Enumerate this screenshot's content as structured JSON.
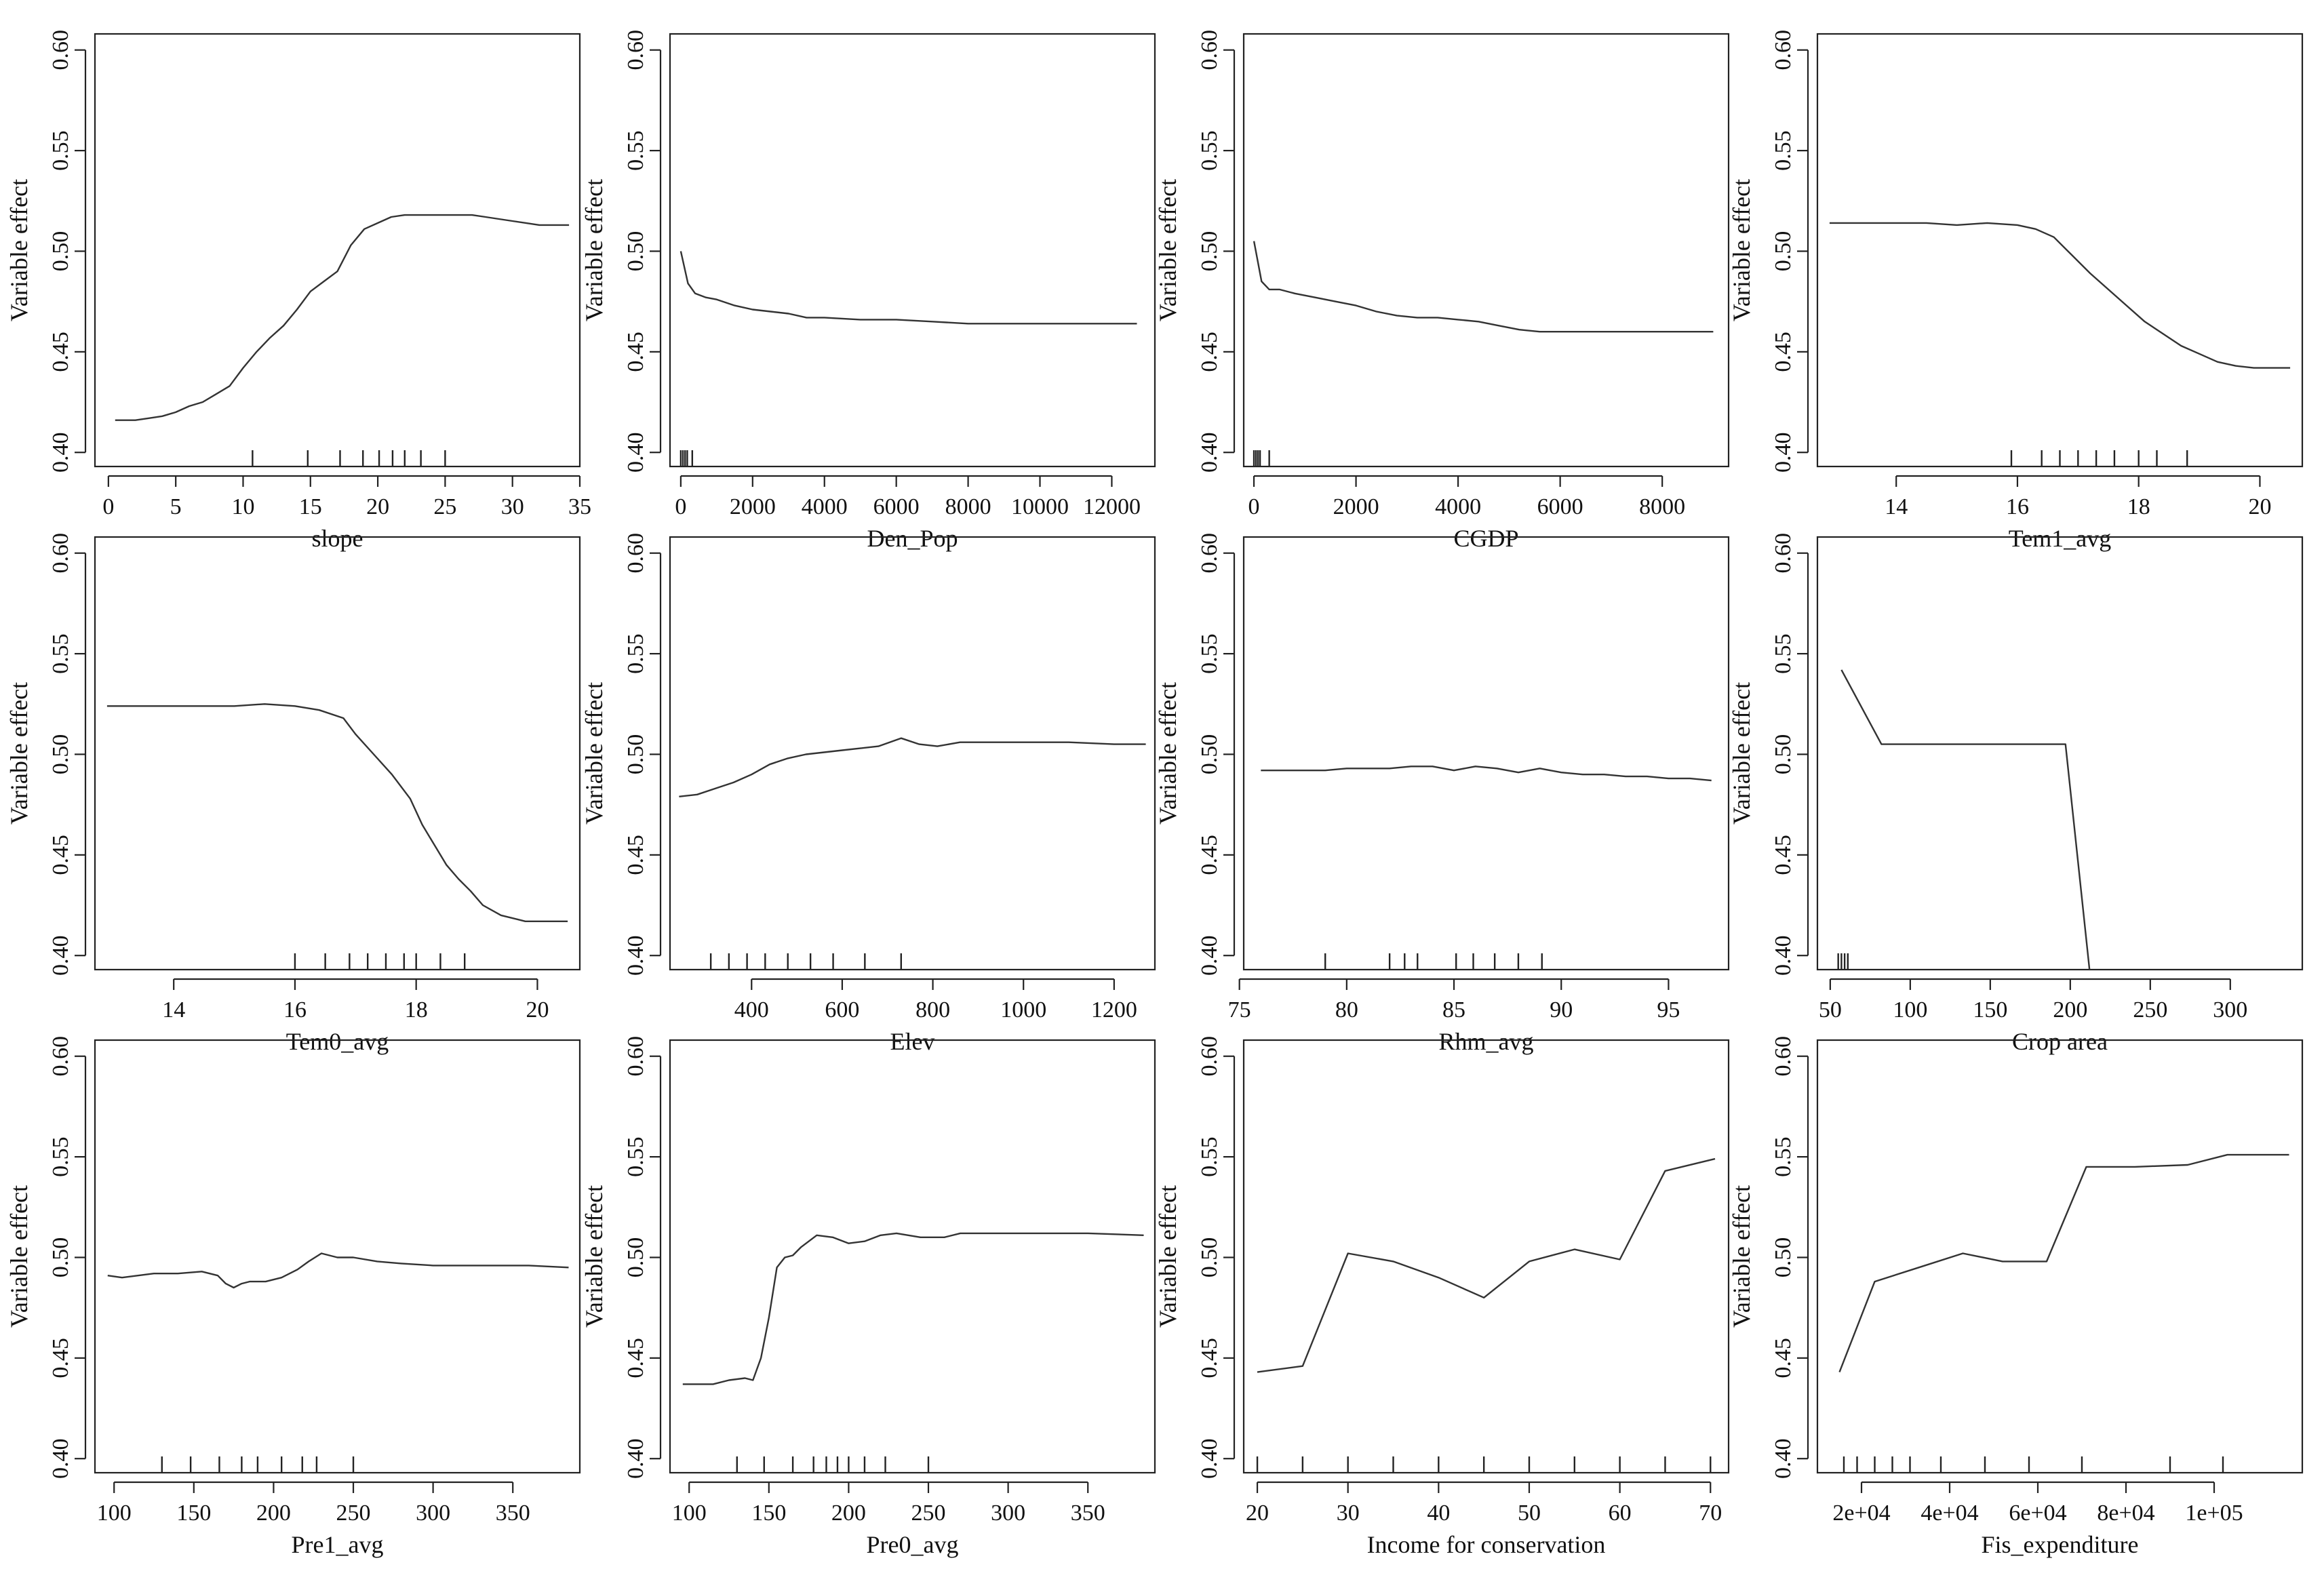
{
  "chart_data": [
    {
      "type": "line",
      "xlabel": "slope",
      "ylabel": "Variable effect",
      "xlim": [
        -1,
        35
      ],
      "ylim": [
        0.393,
        0.608
      ],
      "xticks": [
        0,
        5,
        10,
        15,
        20,
        25,
        30,
        35
      ],
      "xtick_labels": [
        "0",
        "5",
        "10",
        "15",
        "20",
        "25",
        "30",
        "35"
      ],
      "yticks": [
        0.4,
        0.45,
        0.5,
        0.55,
        0.6
      ],
      "ytick_labels": [
        "0.40",
        "0.45",
        "0.50",
        "0.55",
        "0.60"
      ],
      "rug": [
        10.7,
        14.8,
        17.2,
        18.9,
        20.1,
        21.1,
        22.0,
        23.2,
        25.0
      ],
      "x": [
        0.5,
        2,
        3,
        4,
        5,
        6,
        7,
        8,
        9,
        10,
        11,
        12,
        13,
        14,
        15,
        16,
        17,
        18,
        19,
        20,
        21,
        22,
        23,
        24,
        25,
        26,
        27,
        28,
        29,
        30,
        31,
        32,
        33,
        34.2
      ],
      "y": [
        0.416,
        0.416,
        0.417,
        0.418,
        0.42,
        0.423,
        0.425,
        0.429,
        0.433,
        0.442,
        0.45,
        0.457,
        0.463,
        0.471,
        0.48,
        0.485,
        0.49,
        0.503,
        0.511,
        0.514,
        0.517,
        0.518,
        0.518,
        0.518,
        0.518,
        0.518,
        0.518,
        0.517,
        0.516,
        0.515,
        0.514,
        0.513,
        0.513,
        0.513
      ]
    },
    {
      "type": "line",
      "xlabel": "Den_Pop",
      "ylabel": "Variable effect",
      "xlim": [
        -300,
        13200
      ],
      "ylim": [
        0.393,
        0.608
      ],
      "xticks": [
        0,
        2000,
        4000,
        6000,
        8000,
        10000,
        12000
      ],
      "xtick_labels": [
        "0",
        "2000",
        "4000",
        "6000",
        "8000",
        "10000",
        "12000"
      ],
      "yticks": [
        0.4,
        0.45,
        0.5,
        0.55,
        0.6
      ],
      "ytick_labels": [
        "0.40",
        "0.45",
        "0.50",
        "0.55",
        "0.60"
      ],
      "rug": [
        0,
        60,
        120,
        180,
        320
      ],
      "x": [
        0,
        200,
        400,
        700,
        1000,
        1500,
        2000,
        2500,
        3000,
        3500,
        4000,
        5000,
        6000,
        7000,
        8000,
        9000,
        10000,
        11000,
        12000,
        12700
      ],
      "y": [
        0.5,
        0.484,
        0.479,
        0.477,
        0.476,
        0.473,
        0.471,
        0.47,
        0.469,
        0.467,
        0.467,
        0.466,
        0.466,
        0.465,
        0.464,
        0.464,
        0.464,
        0.464,
        0.464,
        0.464
      ]
    },
    {
      "type": "line",
      "xlabel": "CGDP",
      "ylabel": "Variable effect",
      "xlim": [
        -200,
        9300
      ],
      "ylim": [
        0.393,
        0.608
      ],
      "xticks": [
        0,
        2000,
        4000,
        6000,
        8000
      ],
      "xtick_labels": [
        "0",
        "2000",
        "4000",
        "6000",
        "8000"
      ],
      "yticks": [
        0.4,
        0.45,
        0.5,
        0.55,
        0.6
      ],
      "ytick_labels": [
        "0.40",
        "0.45",
        "0.50",
        "0.55",
        "0.60"
      ],
      "rug": [
        0,
        40,
        80,
        120,
        300
      ],
      "x": [
        0,
        150,
        300,
        500,
        800,
        1200,
        1600,
        2000,
        2400,
        2800,
        3200,
        3600,
        4000,
        4400,
        4800,
        5200,
        5600,
        6000,
        6500,
        7000,
        7500,
        8000,
        8500,
        9000
      ],
      "y": [
        0.505,
        0.485,
        0.481,
        0.481,
        0.479,
        0.477,
        0.475,
        0.473,
        0.47,
        0.468,
        0.467,
        0.467,
        0.466,
        0.465,
        0.463,
        0.461,
        0.46,
        0.46,
        0.46,
        0.46,
        0.46,
        0.46,
        0.46,
        0.46
      ]
    },
    {
      "type": "line",
      "xlabel": "Tem1_avg",
      "ylabel": "Variable effect",
      "xlim": [
        12.7,
        20.7
      ],
      "ylim": [
        0.393,
        0.608
      ],
      "xticks": [
        14,
        16,
        18,
        20
      ],
      "xtick_labels": [
        "14",
        "16",
        "18",
        "20"
      ],
      "yticks": [
        0.4,
        0.45,
        0.5,
        0.55,
        0.6
      ],
      "ytick_labels": [
        "0.40",
        "0.45",
        "0.50",
        "0.55",
        "0.60"
      ],
      "rug": [
        15.9,
        16.4,
        16.7,
        17.0,
        17.3,
        17.6,
        18.0,
        18.3,
        18.8
      ],
      "x": [
        12.9,
        13.5,
        14.0,
        14.5,
        15.0,
        15.5,
        16.0,
        16.3,
        16.6,
        16.9,
        17.2,
        17.5,
        17.8,
        18.1,
        18.4,
        18.7,
        19.0,
        19.3,
        19.6,
        19.9,
        20.2,
        20.5
      ],
      "y": [
        0.514,
        0.514,
        0.514,
        0.514,
        0.513,
        0.514,
        0.513,
        0.511,
        0.507,
        0.498,
        0.489,
        0.481,
        0.473,
        0.465,
        0.459,
        0.453,
        0.449,
        0.445,
        0.443,
        0.442,
        0.442,
        0.442
      ]
    },
    {
      "type": "line",
      "xlabel": "Tem0_avg",
      "ylabel": "Variable effect",
      "xlim": [
        12.7,
        20.7
      ],
      "ylim": [
        0.393,
        0.608
      ],
      "xticks": [
        14,
        16,
        18,
        20
      ],
      "xtick_labels": [
        "14",
        "16",
        "18",
        "20"
      ],
      "yticks": [
        0.4,
        0.45,
        0.5,
        0.55,
        0.6
      ],
      "ytick_labels": [
        "0.40",
        "0.45",
        "0.50",
        "0.55",
        "0.60"
      ],
      "rug": [
        16.0,
        16.5,
        16.9,
        17.2,
        17.5,
        17.8,
        18.0,
        18.4,
        18.8
      ],
      "x": [
        12.9,
        13.5,
        14.0,
        14.5,
        15.0,
        15.5,
        16.0,
        16.4,
        16.8,
        17.0,
        17.3,
        17.6,
        17.9,
        18.1,
        18.3,
        18.5,
        18.7,
        18.9,
        19.1,
        19.4,
        19.8,
        20.2,
        20.5
      ],
      "y": [
        0.524,
        0.524,
        0.524,
        0.524,
        0.524,
        0.525,
        0.524,
        0.522,
        0.518,
        0.51,
        0.5,
        0.49,
        0.478,
        0.465,
        0.455,
        0.445,
        0.438,
        0.432,
        0.425,
        0.42,
        0.417,
        0.417,
        0.417
      ]
    },
    {
      "type": "line",
      "xlabel": "Elev",
      "ylabel": "Variable effect",
      "xlim": [
        220,
        1290
      ],
      "ylim": [
        0.393,
        0.608
      ],
      "xticks": [
        400,
        600,
        800,
        1000,
        1200
      ],
      "xtick_labels": [
        "400",
        "600",
        "800",
        "1000",
        "1200"
      ],
      "yticks": [
        0.4,
        0.45,
        0.5,
        0.55,
        0.6
      ],
      "ytick_labels": [
        "0.40",
        "0.45",
        "0.50",
        "0.55",
        "0.60"
      ],
      "rug": [
        310,
        350,
        390,
        430,
        480,
        530,
        580,
        650,
        730
      ],
      "x": [
        240,
        280,
        320,
        360,
        400,
        440,
        480,
        520,
        560,
        600,
        640,
        680,
        730,
        770,
        810,
        860,
        900,
        1000,
        1100,
        1200,
        1270
      ],
      "y": [
        0.479,
        0.48,
        0.483,
        0.486,
        0.49,
        0.495,
        0.498,
        0.5,
        0.501,
        0.502,
        0.503,
        0.504,
        0.508,
        0.505,
        0.504,
        0.506,
        0.506,
        0.506,
        0.506,
        0.505,
        0.505
      ]
    },
    {
      "type": "line",
      "xlabel": "Rhm_avg",
      "ylabel": "Variable effect",
      "xlim": [
        75.2,
        97.8
      ],
      "ylim": [
        0.393,
        0.608
      ],
      "xticks": [
        75,
        80,
        85,
        90,
        95
      ],
      "xtick_labels": [
        "75",
        "80",
        "85",
        "90",
        "95"
      ],
      "yticks": [
        0.4,
        0.45,
        0.5,
        0.55,
        0.6
      ],
      "ytick_labels": [
        "0.40",
        "0.45",
        "0.50",
        "0.55",
        "0.60"
      ],
      "rug": [
        79.0,
        82.0,
        82.7,
        83.3,
        85.1,
        85.9,
        86.9,
        88.0,
        89.1
      ],
      "x": [
        76,
        77,
        78,
        79,
        80,
        81,
        82,
        83,
        84,
        85,
        86,
        87,
        88,
        89,
        90,
        91,
        92,
        93,
        94,
        95,
        96,
        97
      ],
      "y": [
        0.492,
        0.492,
        0.492,
        0.492,
        0.493,
        0.493,
        0.493,
        0.494,
        0.494,
        0.492,
        0.494,
        0.493,
        0.491,
        0.493,
        0.491,
        0.49,
        0.49,
        0.489,
        0.489,
        0.488,
        0.488,
        0.487
      ]
    },
    {
      "type": "line",
      "xlabel": "Crop area",
      "ylabel": "Variable effect",
      "xlim": [
        42,
        345
      ],
      "ylim": [
        0.393,
        0.608
      ],
      "xticks": [
        50,
        100,
        150,
        200,
        250,
        300
      ],
      "xtick_labels": [
        "50",
        "100",
        "150",
        "200",
        "250",
        "300"
      ],
      "yticks": [
        0.4,
        0.45,
        0.5,
        0.55,
        0.6
      ],
      "ytick_labels": [
        "0.40",
        "0.45",
        "0.50",
        "0.55",
        "0.60"
      ],
      "rug": [
        55,
        57,
        59,
        61
      ],
      "x": [
        57,
        82,
        120,
        160,
        197,
        212
      ],
      "y": [
        0.542,
        0.505,
        0.505,
        0.505,
        0.505,
        0.393
      ]
    },
    {
      "type": "line",
      "xlabel": "Pre1_avg",
      "ylabel": "Variable effect",
      "xlim": [
        88,
        392
      ],
      "ylim": [
        0.393,
        0.608
      ],
      "xticks": [
        100,
        150,
        200,
        250,
        300,
        350
      ],
      "xtick_labels": [
        "100",
        "150",
        "200",
        "250",
        "300",
        "350"
      ],
      "yticks": [
        0.4,
        0.45,
        0.5,
        0.55,
        0.6
      ],
      "ytick_labels": [
        "0.40",
        "0.45",
        "0.50",
        "0.55",
        "0.60"
      ],
      "rug": [
        130,
        148,
        166,
        180,
        190,
        205,
        218,
        227,
        250
      ],
      "x": [
        96,
        105,
        115,
        125,
        140,
        155,
        165,
        170,
        175,
        180,
        185,
        195,
        205,
        215,
        222,
        230,
        240,
        250,
        265,
        280,
        300,
        330,
        360,
        385
      ],
      "y": [
        0.491,
        0.49,
        0.491,
        0.492,
        0.492,
        0.493,
        0.491,
        0.487,
        0.485,
        0.487,
        0.488,
        0.488,
        0.49,
        0.494,
        0.498,
        0.502,
        0.5,
        0.5,
        0.498,
        0.497,
        0.496,
        0.496,
        0.496,
        0.495
      ]
    },
    {
      "type": "line",
      "xlabel": "Pre0_avg",
      "ylabel": "Variable effect",
      "xlim": [
        88,
        392
      ],
      "ylim": [
        0.393,
        0.608
      ],
      "xticks": [
        100,
        150,
        200,
        250,
        300,
        350
      ],
      "xtick_labels": [
        "100",
        "150",
        "200",
        "250",
        "300",
        "350"
      ],
      "yticks": [
        0.4,
        0.45,
        0.5,
        0.55,
        0.6
      ],
      "ytick_labels": [
        "0.40",
        "0.45",
        "0.50",
        "0.55",
        "0.60"
      ],
      "rug": [
        130,
        147,
        165,
        178,
        186,
        193,
        200,
        210,
        223,
        250
      ],
      "x": [
        96,
        105,
        115,
        125,
        135,
        140,
        145,
        150,
        155,
        160,
        165,
        170,
        180,
        190,
        200,
        210,
        220,
        230,
        245,
        260,
        270,
        290,
        320,
        350,
        385
      ],
      "y": [
        0.437,
        0.437,
        0.437,
        0.439,
        0.44,
        0.439,
        0.45,
        0.47,
        0.495,
        0.5,
        0.501,
        0.505,
        0.511,
        0.51,
        0.507,
        0.508,
        0.511,
        0.512,
        0.51,
        0.51,
        0.512,
        0.512,
        0.512,
        0.512,
        0.511
      ]
    },
    {
      "type": "line",
      "xlabel": "Income for conservation",
      "ylabel": "Variable effect",
      "xlim": [
        18.5,
        72
      ],
      "ylim": [
        0.393,
        0.608
      ],
      "xticks": [
        20,
        30,
        40,
        50,
        60,
        70
      ],
      "xtick_labels": [
        "20",
        "30",
        "40",
        "50",
        "60",
        "70"
      ],
      "yticks": [
        0.4,
        0.45,
        0.5,
        0.55,
        0.6
      ],
      "ytick_labels": [
        "0.40",
        "0.45",
        "0.50",
        "0.55",
        "0.60"
      ],
      "rug": [
        20,
        25,
        30,
        35,
        40,
        45,
        50,
        55,
        60,
        65,
        70
      ],
      "x": [
        20,
        25,
        30,
        35,
        40,
        45,
        50,
        55,
        60,
        65,
        70.5
      ],
      "y": [
        0.443,
        0.446,
        0.502,
        0.498,
        0.49,
        0.48,
        0.498,
        0.504,
        0.499,
        0.543,
        0.549
      ]
    },
    {
      "type": "line",
      "xlabel": "Fis_expenditure",
      "ylabel": "Variable effect",
      "xlim": [
        10000,
        120000
      ],
      "ylim": [
        0.393,
        0.608
      ],
      "xticks": [
        20000,
        40000,
        60000,
        80000,
        100000
      ],
      "xtick_labels": [
        "2e+04",
        "4e+04",
        "6e+04",
        "8e+04",
        "1e+05"
      ],
      "yticks": [
        0.4,
        0.45,
        0.5,
        0.55,
        0.6
      ],
      "ytick_labels": [
        "0.40",
        "0.45",
        "0.50",
        "0.55",
        "0.60"
      ],
      "rug": [
        16000,
        19000,
        23000,
        27000,
        31000,
        38000,
        48000,
        58000,
        70000,
        90000,
        102000
      ],
      "x": [
        15000,
        23000,
        33000,
        43000,
        52000,
        62000,
        71000,
        82000,
        94000,
        103000,
        112000,
        117000
      ],
      "y": [
        0.443,
        0.488,
        0.495,
        0.502,
        0.498,
        0.498,
        0.545,
        0.545,
        0.546,
        0.551,
        0.551,
        0.551
      ]
    }
  ]
}
